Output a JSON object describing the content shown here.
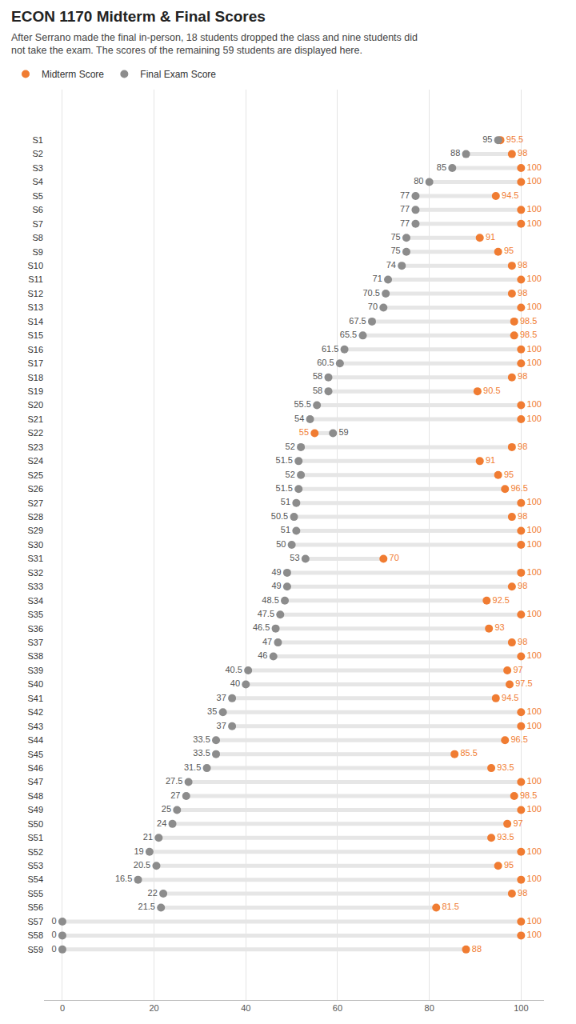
{
  "chart_data": {
    "type": "dumbbell",
    "title": "ECON 1170 Midterm & Final Scores",
    "subtitle": "After Serrano made the final in-person, 18 students dropped the class and nine students did not take the exam. The scores of the remaining 59 students are displayed here.",
    "orientation": "horizontal",
    "categories": [
      "S1",
      "S2",
      "S3",
      "S4",
      "S5",
      "S6",
      "S7",
      "S8",
      "S9",
      "S10",
      "S11",
      "S12",
      "S13",
      "S14",
      "S15",
      "S16",
      "S17",
      "S18",
      "S19",
      "S20",
      "S21",
      "S22",
      "S23",
      "S24",
      "S25",
      "S26",
      "S27",
      "S28",
      "S29",
      "S30",
      "S31",
      "S32",
      "S33",
      "S34",
      "S35",
      "S36",
      "S37",
      "S38",
      "S39",
      "S40",
      "S41",
      "S42",
      "S43",
      "S44",
      "S45",
      "S46",
      "S47",
      "S48",
      "S49",
      "S50",
      "S51",
      "S52",
      "S53",
      "S54",
      "S55",
      "S56",
      "S57",
      "S58",
      "S59"
    ],
    "series": [
      {
        "name": "Midterm Score",
        "color": "#f07c32",
        "values": [
          95.5,
          98,
          100,
          100,
          94.5,
          100,
          100,
          91,
          95,
          98,
          100,
          98,
          100,
          98.5,
          98.5,
          100,
          100,
          98,
          90.5,
          100,
          100,
          55,
          98,
          91,
          95,
          96.5,
          100,
          98,
          100,
          100,
          70,
          100,
          98,
          92.5,
          100,
          93,
          98,
          100,
          97,
          97.5,
          94.5,
          100,
          100,
          96.5,
          85.5,
          93.5,
          100,
          98.5,
          100,
          97,
          93.5,
          100,
          95,
          100,
          98,
          81.5,
          100,
          100,
          88
        ]
      },
      {
        "name": "Final Exam Score",
        "color": "#8c8c8c",
        "values": [
          95,
          88,
          85,
          80,
          77,
          77,
          77,
          75,
          75,
          74,
          71,
          70.5,
          70,
          67.5,
          65.5,
          61.5,
          60.5,
          58,
          58,
          55.5,
          54,
          59,
          52,
          51.5,
          52,
          51.5,
          51,
          50.5,
          51,
          50,
          53,
          49,
          49,
          48.5,
          47.5,
          46.5,
          47,
          46,
          40.5,
          40,
          37,
          35,
          37,
          33.5,
          33.5,
          31.5,
          27.5,
          27,
          25,
          24,
          21,
          19,
          20.5,
          16.5,
          22,
          21.5,
          0,
          0,
          0
        ]
      }
    ],
    "xlim": [
      -4,
      105
    ],
    "xticks": [
      0,
      20,
      40,
      60,
      80,
      100
    ],
    "grid": true,
    "legend": "top-left",
    "data_labels": true
  }
}
